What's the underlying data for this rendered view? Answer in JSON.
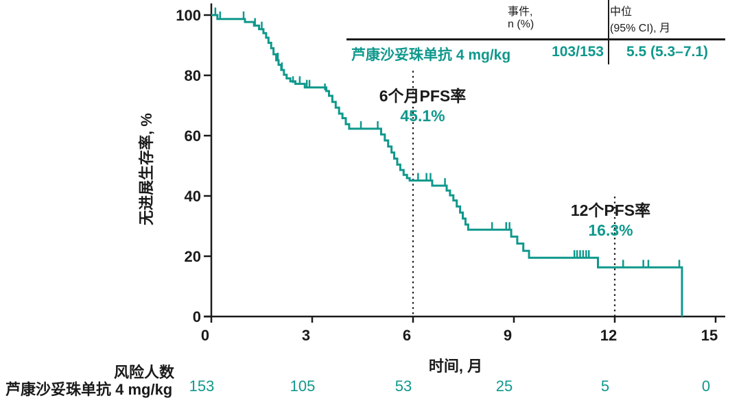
{
  "colors": {
    "accent": "#0f988c",
    "text": "#1a1a1a"
  },
  "summary_table": {
    "events_header": [
      "事件,",
      "n (%)"
    ],
    "median_header": [
      "中位",
      "(95% CI), 月"
    ],
    "row": {
      "label": "芦康沙妥珠单抗 4 mg/kg",
      "events": "103/153",
      "median": "5.5 (5.3–7.1)"
    }
  },
  "risk_table": {
    "header": "风险人数",
    "row_label": "芦康沙妥珠单抗 4 mg/kg",
    "times": [
      0,
      3,
      6,
      9,
      12,
      15
    ],
    "counts": [
      "153",
      "105",
      "53",
      "25",
      "5",
      "0"
    ]
  },
  "chart_data": {
    "type": "line",
    "subtype": "kaplan-meier-step",
    "title": "",
    "xlabel": "时间, 月",
    "ylabel": "无进展生存率, %",
    "xlim": [
      0,
      15
    ],
    "ylim": [
      0,
      100
    ],
    "xticks": [
      "0",
      "3",
      "6",
      "9",
      "12",
      "15"
    ],
    "yticks": [
      "0",
      "20",
      "40",
      "60",
      "80",
      "100"
    ],
    "grid": false,
    "legend_position": "none",
    "annotations": [
      {
        "x": 6,
        "label": "6个月PFS率",
        "value": "45.1%"
      },
      {
        "x": 12,
        "label": "12个PFS率",
        "value": "16.3%"
      }
    ],
    "reference_lines": [
      {
        "x": 6,
        "from_pct": 0,
        "to_pct": 81.5,
        "style": "dotted"
      },
      {
        "x": 12,
        "from_pct": 0,
        "to_pct": 39.8,
        "style": "dotted"
      }
    ],
    "series": [
      {
        "name": "芦康沙妥珠单抗 4 mg/kg",
        "color": "#0f988c",
        "events_n": "103/153",
        "median_months": "5.5 (5.3–7.1)",
        "pfs_6mo_pct": 45.1,
        "pfs_12mo_pct": 16.3,
        "steps": [
          [
            0,
            100
          ],
          [
            0.18,
            98.7
          ],
          [
            1.0,
            97.7
          ],
          [
            1.27,
            96.5
          ],
          [
            1.42,
            95.3
          ],
          [
            1.55,
            94.0
          ],
          [
            1.63,
            92.5
          ],
          [
            1.7,
            90.8
          ],
          [
            1.78,
            89.0
          ],
          [
            1.85,
            87.0
          ],
          [
            1.93,
            85.0
          ],
          [
            2.0,
            83.5
          ],
          [
            2.08,
            81.8
          ],
          [
            2.16,
            80.2
          ],
          [
            2.24,
            79.0
          ],
          [
            2.35,
            78.0
          ],
          [
            2.5,
            77.2
          ],
          [
            2.78,
            76.0
          ],
          [
            3.42,
            74.8
          ],
          [
            3.5,
            73.2
          ],
          [
            3.6,
            71.2
          ],
          [
            3.7,
            69.3
          ],
          [
            3.8,
            67.3
          ],
          [
            3.9,
            65.8
          ],
          [
            4.0,
            63.8
          ],
          [
            4.1,
            62.3
          ],
          [
            5.05,
            60.4
          ],
          [
            5.16,
            58.4
          ],
          [
            5.26,
            56.4
          ],
          [
            5.36,
            54.4
          ],
          [
            5.44,
            52.4
          ],
          [
            5.53,
            50.4
          ],
          [
            5.62,
            48.6
          ],
          [
            5.72,
            47.0
          ],
          [
            5.82,
            45.9
          ],
          [
            5.9,
            45.1
          ],
          [
            6.57,
            43.4
          ],
          [
            7.0,
            41.8
          ],
          [
            7.1,
            40.2
          ],
          [
            7.2,
            38.5
          ],
          [
            7.3,
            36.5
          ],
          [
            7.4,
            34.5
          ],
          [
            7.48,
            32.5
          ],
          [
            7.56,
            30.5
          ],
          [
            7.64,
            28.8
          ],
          [
            8.92,
            26.5
          ],
          [
            9.1,
            24.2
          ],
          [
            9.28,
            21.8
          ],
          [
            9.45,
            19.5
          ],
          [
            11.5,
            16.3
          ],
          [
            14.0,
            0
          ]
        ],
        "censor_marks": [
          [
            0.12,
            100
          ],
          [
            0.26,
            98.7
          ],
          [
            0.96,
            98.7
          ],
          [
            1.3,
            96.5
          ],
          [
            1.5,
            95.3
          ],
          [
            1.98,
            85.0
          ],
          [
            2.1,
            81.8
          ],
          [
            2.43,
            77.2
          ],
          [
            2.63,
            77.2
          ],
          [
            2.84,
            76.0
          ],
          [
            2.92,
            76.0
          ],
          [
            3.38,
            74.8
          ],
          [
            4.45,
            62.3
          ],
          [
            4.95,
            62.3
          ],
          [
            6.15,
            45.1
          ],
          [
            6.4,
            45.1
          ],
          [
            6.52,
            45.1
          ],
          [
            6.95,
            43.4
          ],
          [
            8.35,
            28.8
          ],
          [
            8.77,
            28.8
          ],
          [
            8.87,
            28.8
          ],
          [
            10.8,
            19.5
          ],
          [
            10.88,
            19.5
          ],
          [
            10.97,
            19.5
          ],
          [
            11.06,
            19.5
          ],
          [
            11.15,
            19.5
          ],
          [
            11.23,
            19.5
          ],
          [
            12.25,
            16.3
          ],
          [
            12.85,
            16.3
          ],
          [
            13.0,
            16.3
          ],
          [
            13.92,
            16.3
          ]
        ]
      }
    ]
  }
}
